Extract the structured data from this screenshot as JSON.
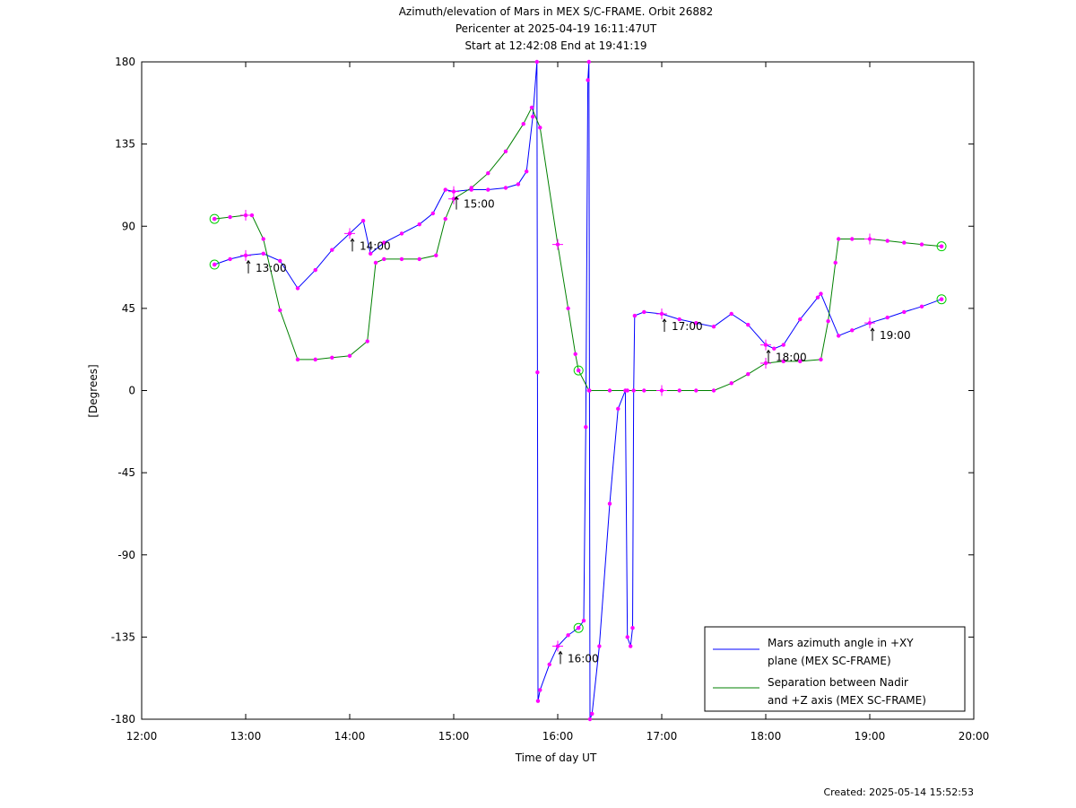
{
  "chart_data": {
    "type": "line",
    "title": [
      "Azimuth/elevation of Mars in MEX S/C-FRAME.  Orbit 26882",
      "Pericenter at 2025-04-19 16:11:47UT",
      "Start at 12:42:08 End at 19:41:19"
    ],
    "xlabel": "Time of day UT",
    "ylabel": "[Degrees]",
    "x_unit": "hours of day UT",
    "xlim": [
      12,
      20
    ],
    "ylim": [
      -180,
      180
    ],
    "x_ticks": [
      "12:00",
      "13:00",
      "14:00",
      "15:00",
      "16:00",
      "17:00",
      "18:00",
      "19:00",
      "20:00"
    ],
    "y_ticks": [
      "180",
      "135",
      "90",
      "45",
      "0",
      "-45",
      "-90",
      "-135",
      "-180"
    ],
    "grid": false,
    "legend_position": "bottom-right",
    "legend": [
      "Mars azimuth angle in +XY plane (MEX SC-FRAME)",
      "Separation between Nadir and +Z axis (MEX SC-FRAME)"
    ],
    "colors": {
      "azimuth": "#0000ff",
      "separation": "#008000",
      "markers": "#ff00ff",
      "circles": "#00cc00",
      "axis": "#000000"
    },
    "series": [
      {
        "name": "Mars azimuth angle in +XY plane (MEX SC-FRAME)",
        "color": "#0000ff",
        "points": [
          [
            12.7,
            69
          ],
          [
            12.85,
            72
          ],
          [
            13.0,
            74
          ],
          [
            13.17,
            75
          ],
          [
            13.33,
            71
          ],
          [
            13.5,
            56
          ],
          [
            13.67,
            66
          ],
          [
            13.83,
            77
          ],
          [
            14.0,
            86
          ],
          [
            14.13,
            93
          ],
          [
            14.2,
            75
          ],
          [
            14.33,
            81
          ],
          [
            14.5,
            86
          ],
          [
            14.67,
            91
          ],
          [
            14.8,
            97
          ],
          [
            14.92,
            110
          ],
          [
            15.0,
            109
          ],
          [
            15.17,
            110
          ],
          [
            15.33,
            110
          ],
          [
            15.5,
            111
          ],
          [
            15.62,
            113
          ],
          [
            15.7,
            120
          ],
          [
            15.76,
            150
          ],
          [
            15.8,
            180
          ],
          [
            15.805,
            10
          ],
          [
            15.81,
            -170
          ],
          [
            15.83,
            -164
          ],
          [
            15.92,
            -150
          ],
          [
            16.0,
            -140
          ],
          [
            16.1,
            -134
          ],
          [
            16.2,
            -130
          ],
          [
            16.25,
            -126
          ],
          [
            16.27,
            -20
          ],
          [
            16.29,
            170
          ],
          [
            16.3,
            180
          ],
          [
            16.305,
            0
          ],
          [
            16.31,
            -180
          ],
          [
            16.33,
            -177
          ],
          [
            16.4,
            -140
          ],
          [
            16.5,
            -62
          ],
          [
            16.58,
            -10
          ],
          [
            16.65,
            0
          ],
          [
            16.67,
            -135
          ],
          [
            16.7,
            -140
          ],
          [
            16.72,
            -130
          ],
          [
            16.73,
            0
          ],
          [
            16.74,
            41
          ],
          [
            16.83,
            43
          ],
          [
            17.0,
            42
          ],
          [
            17.17,
            39
          ],
          [
            17.33,
            37
          ],
          [
            17.5,
            35
          ],
          [
            17.67,
            42
          ],
          [
            17.83,
            36
          ],
          [
            18.0,
            25
          ],
          [
            18.08,
            23
          ],
          [
            18.17,
            25
          ],
          [
            18.33,
            39
          ],
          [
            18.5,
            51
          ],
          [
            18.53,
            53
          ],
          [
            18.7,
            30
          ],
          [
            18.83,
            33
          ],
          [
            19.0,
            37
          ],
          [
            19.17,
            40
          ],
          [
            19.33,
            43
          ],
          [
            19.5,
            46
          ],
          [
            19.69,
            50
          ]
        ]
      },
      {
        "name": "Separation between Nadir and +Z axis (MEX SC-FRAME)",
        "color": "#008000",
        "points": [
          [
            12.7,
            94
          ],
          [
            12.85,
            95
          ],
          [
            13.0,
            96
          ],
          [
            13.06,
            96
          ],
          [
            13.17,
            83
          ],
          [
            13.33,
            44
          ],
          [
            13.5,
            17
          ],
          [
            13.67,
            17
          ],
          [
            13.83,
            18
          ],
          [
            14.0,
            19
          ],
          [
            14.17,
            27
          ],
          [
            14.25,
            70
          ],
          [
            14.33,
            72
          ],
          [
            14.5,
            72
          ],
          [
            14.67,
            72
          ],
          [
            14.83,
            74
          ],
          [
            14.92,
            94
          ],
          [
            15.0,
            105
          ],
          [
            15.17,
            111
          ],
          [
            15.33,
            119
          ],
          [
            15.5,
            131
          ],
          [
            15.67,
            146
          ],
          [
            15.75,
            155
          ],
          [
            15.83,
            144
          ],
          [
            16.0,
            80
          ],
          [
            16.1,
            45
          ],
          [
            16.17,
            20
          ],
          [
            16.2,
            11
          ],
          [
            16.3,
            0
          ],
          [
            16.5,
            0
          ],
          [
            16.67,
            0
          ],
          [
            16.83,
            0
          ],
          [
            17.0,
            0
          ],
          [
            17.17,
            0
          ],
          [
            17.33,
            0
          ],
          [
            17.5,
            0
          ],
          [
            17.67,
            4
          ],
          [
            17.83,
            9
          ],
          [
            18.0,
            15
          ],
          [
            18.17,
            16
          ],
          [
            18.33,
            16
          ],
          [
            18.53,
            17
          ],
          [
            18.6,
            38
          ],
          [
            18.67,
            70
          ],
          [
            18.7,
            83
          ],
          [
            18.83,
            83
          ],
          [
            19.0,
            83
          ],
          [
            19.17,
            82
          ],
          [
            19.33,
            81
          ],
          [
            19.5,
            80
          ],
          [
            19.69,
            79
          ]
        ]
      }
    ],
    "hour_marks": [
      {
        "label": "13:00",
        "x": 13.0,
        "y": 74
      },
      {
        "label": "14:00",
        "x": 14.0,
        "y": 86
      },
      {
        "label": "15:00",
        "x": 15.0,
        "y": 109
      },
      {
        "label": "16:00",
        "x": 16.0,
        "y": -140
      },
      {
        "label": "17:00",
        "x": 17.0,
        "y": 42
      },
      {
        "label": "18:00",
        "x": 18.0,
        "y": 25
      },
      {
        "label": "19:00",
        "x": 19.0,
        "y": 37
      }
    ],
    "circle_marks": [
      {
        "x": 12.7,
        "y": 94
      },
      {
        "x": 12.7,
        "y": 69
      },
      {
        "x": 19.69,
        "y": 79
      },
      {
        "x": 19.69,
        "y": 50
      },
      {
        "x": 16.2,
        "y": 11
      },
      {
        "x": 16.2,
        "y": -130
      }
    ],
    "extra_plus_marks": [
      {
        "x": 13.0,
        "y": 96
      },
      {
        "x": 15.0,
        "y": 105
      },
      {
        "x": 16.0,
        "y": 80
      },
      {
        "x": 17.0,
        "y": 0
      },
      {
        "x": 18.0,
        "y": 15
      },
      {
        "x": 19.0,
        "y": 83
      }
    ]
  },
  "footer": {
    "created": "Created: 2025-05-14 15:52:53"
  }
}
